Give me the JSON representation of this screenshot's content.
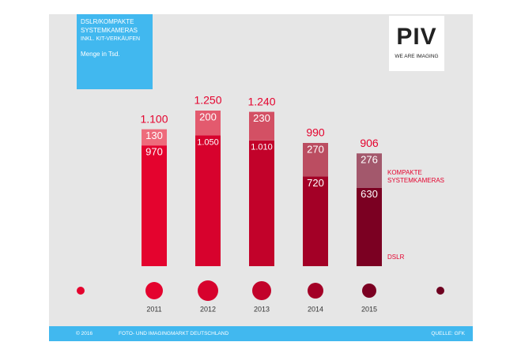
{
  "header": {
    "title": "DSLR/KOMPAKTE SYSTEMKAMERAS",
    "subtitle": "INKL. KIT-VERKÄUFEN",
    "unit": "Menge in Tsd."
  },
  "logo": {
    "mark": "PIV",
    "tagline": "WE ARE IMAGING"
  },
  "footer": {
    "copyright": "© 2016",
    "text": "FOTO- UND IMAGINGMARKT DEUTSCHLAND",
    "source": "QUELLE: GFK"
  },
  "chart_data": {
    "type": "stacked_bar",
    "categories": [
      "2011",
      "2012",
      "2013",
      "2014",
      "2015"
    ],
    "series": [
      {
        "name": "DSLR",
        "values": [
          970,
          1050,
          1010,
          720,
          630
        ],
        "value_labels": [
          "970",
          "1.050",
          "1.010",
          "720",
          "630"
        ],
        "colors": [
          "#e4032e",
          "#d7022d",
          "#c2022a",
          "#a30026",
          "#7b0022"
        ]
      },
      {
        "name": "KOMPAKTE SYSTEMKAMERAS",
        "values": [
          130,
          200,
          230,
          270,
          276
        ],
        "value_labels": [
          "130",
          "200",
          "230",
          "270",
          "276"
        ],
        "colors": [
          "#ee6b7b",
          "#e35a6e",
          "#d35064",
          "#bb4d61",
          "#a3586c"
        ]
      }
    ],
    "totals": {
      "values": [
        1100,
        1250,
        1240,
        990,
        906
      ],
      "value_labels": [
        "1.100",
        "1.250",
        "1.240",
        "990",
        "906"
      ]
    }
  }
}
